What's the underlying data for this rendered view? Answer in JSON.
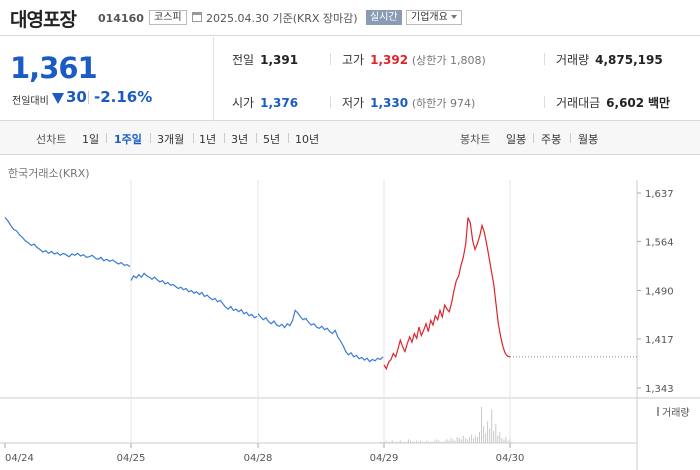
{
  "header": {
    "name": "대영포장",
    "code": "014160",
    "market": "코스피",
    "date_text": "2025.04.30  기준(KRX 장마감)",
    "realtime": "실시간",
    "company_info": "기업개요"
  },
  "quote": {
    "price": "1,361",
    "change_label": "전일대비",
    "change": "30",
    "change_pct": "-2.16%",
    "prev_close": {
      "label": "전일",
      "value": "1,391"
    },
    "high": {
      "label": "고가",
      "value": "1,392",
      "limit": "(상한가 1,808)"
    },
    "volume": {
      "label": "거래량",
      "value": "4,875,195"
    },
    "open": {
      "label": "시가",
      "value": "1,376"
    },
    "low": {
      "label": "저가",
      "value": "1,330",
      "limit": "(하한가 974)"
    },
    "trade_value": {
      "label": "거래대금",
      "value": "6,602",
      "unit": "백만"
    }
  },
  "tabs": {
    "line_label": "선차트",
    "line_items": [
      "1일",
      "1주일",
      "3개월",
      "1년",
      "3년",
      "5년",
      "10년"
    ],
    "active": "1주일",
    "candle_label": "봉차트",
    "candle_items": [
      "일봉",
      "주봉",
      "월봉"
    ]
  },
  "chart_data": {
    "type": "line",
    "exchange": "한국거래소(KRX)",
    "y_ticks": [
      "1,637",
      "1,564",
      "1,490",
      "1,417",
      "1,343"
    ],
    "ylim": [
      1343,
      1637
    ],
    "x_ticks": [
      "04/24",
      "04/25",
      "04/28",
      "04/29",
      "04/30"
    ],
    "volume_label": "거래량",
    "colors": {
      "down": "#3a7bd5",
      "up": "#e0232b",
      "volume": "#c8c8c8"
    },
    "down_series": {
      "name": "",
      "day_segments": [
        [
          1600,
          1595,
          1588,
          1582,
          1580,
          1574,
          1570,
          1565,
          1562,
          1558,
          1560,
          1555,
          1552,
          1548,
          1550,
          1546,
          1549,
          1545,
          1547,
          1543,
          1546,
          1544,
          1541,
          1545,
          1543,
          1546,
          1542,
          1544,
          1540,
          1541,
          1543,
          1539,
          1537,
          1540,
          1535,
          1537,
          1534,
          1536,
          1533,
          1530,
          1532,
          1528,
          1529,
          1526
        ],
        [
          1505,
          1512,
          1509,
          1514,
          1510,
          1516,
          1512,
          1510,
          1507,
          1510,
          1506,
          1503,
          1505,
          1500,
          1502,
          1498,
          1499,
          1496,
          1493,
          1495,
          1491,
          1493,
          1488,
          1490,
          1486,
          1488,
          1484,
          1487,
          1481,
          1483,
          1479,
          1476,
          1478,
          1473,
          1475,
          1470,
          1465,
          1462,
          1466,
          1460,
          1462,
          1458,
          1461,
          1455,
          1457,
          1452,
          1454,
          1449,
          1451
        ],
        [
          1455,
          1450,
          1446,
          1449,
          1443,
          1440,
          1444,
          1438,
          1436,
          1439,
          1434,
          1440,
          1437,
          1445,
          1460,
          1456,
          1450,
          1446,
          1448,
          1442,
          1438,
          1440,
          1435,
          1433,
          1436,
          1431,
          1433,
          1428,
          1425,
          1430,
          1420,
          1414,
          1407,
          1398,
          1393,
          1396,
          1390,
          1392,
          1387,
          1389,
          1385,
          1388,
          1383,
          1386,
          1384,
          1388,
          1386,
          1390
        ]
      ]
    },
    "up_series": {
      "name": "",
      "values": [
        1378,
        1372,
        1382,
        1386,
        1395,
        1390,
        1402,
        1415,
        1405,
        1398,
        1410,
        1420,
        1412,
        1425,
        1418,
        1435,
        1422,
        1430,
        1440,
        1428,
        1445,
        1438,
        1452,
        1446,
        1460,
        1450,
        1468,
        1462,
        1458,
        1472,
        1490,
        1505,
        1512,
        1528,
        1540,
        1560,
        1600,
        1592,
        1565,
        1552,
        1560,
        1572,
        1588,
        1578,
        1560,
        1540,
        1520,
        1500,
        1470,
        1440,
        1420,
        1405,
        1395,
        1391,
        1390
      ],
      "reference": 1390
    },
    "volume": [
      1,
      1,
      1,
      2,
      1,
      1,
      2,
      1,
      1,
      1,
      2,
      1,
      1,
      1,
      3,
      2,
      1,
      1,
      2,
      1,
      2,
      1,
      1,
      2,
      1,
      1,
      1,
      2,
      3,
      2,
      1,
      1,
      2,
      3,
      2,
      4,
      3,
      2,
      5,
      4,
      3,
      6,
      4,
      3,
      5,
      7,
      4,
      6,
      5,
      9,
      30,
      14,
      8,
      18,
      12,
      28,
      10,
      16,
      6,
      9,
      4,
      3,
      5,
      2,
      3,
      1
    ]
  }
}
